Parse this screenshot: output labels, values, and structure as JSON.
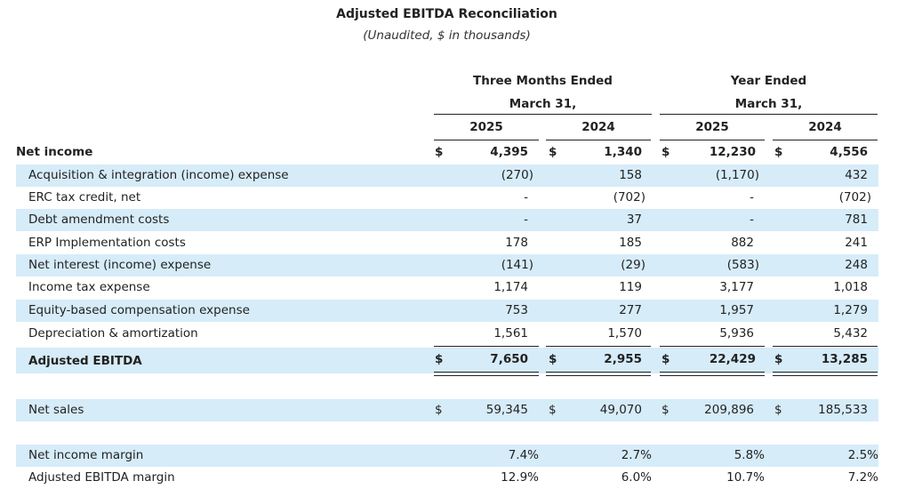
{
  "title": "Adjusted EBITDA Reconciliation",
  "subtitle": "(Unaudited, $ in thousands)",
  "periods": {
    "three_months_line1": "Three Months Ended",
    "three_months_line2": "March 31,",
    "year_line1": "Year Ended",
    "year_line2": "March 31,"
  },
  "years": [
    "2025",
    "2024",
    "2025",
    "2024"
  ],
  "rows": [
    {
      "label": "Net income",
      "values": [
        "4,395",
        "1,340",
        "12,230",
        "4,556"
      ],
      "dollar": "$"
    },
    {
      "label": "Acquisition & integration (income) expense",
      "values": [
        "(270)",
        "158",
        "(1,170)",
        "432"
      ]
    },
    {
      "label": "ERC tax credit, net",
      "values": [
        "-",
        "(702)",
        "-",
        "(702)"
      ]
    },
    {
      "label": "Debt amendment costs",
      "values": [
        "-",
        "37",
        "-",
        "781"
      ]
    },
    {
      "label": "ERP Implementation costs",
      "values": [
        "178",
        "185",
        "882",
        "241"
      ]
    },
    {
      "label": "Net interest (income) expense",
      "values": [
        "(141)",
        "(29)",
        "(583)",
        "248"
      ]
    },
    {
      "label": "Income tax expense",
      "values": [
        "1,174",
        "119",
        "3,177",
        "1,018"
      ]
    },
    {
      "label": "Equity-based compensation expense",
      "values": [
        "753",
        "277",
        "1,957",
        "1,279"
      ]
    },
    {
      "label": "Depreciation & amortization",
      "values": [
        "1,561",
        "1,570",
        "5,936",
        "5,432"
      ]
    },
    {
      "label": "Adjusted EBITDA",
      "values": [
        "7,650",
        "2,955",
        "22,429",
        "13,285"
      ],
      "dollar": "$"
    }
  ],
  "net_sales": {
    "label": "Net sales",
    "values": [
      "59,345",
      "49,070",
      "209,896",
      "185,533"
    ],
    "dollar": "$"
  },
  "margins": [
    {
      "label": "Net income margin",
      "values": [
        "7.4%",
        "2.7%",
        "5.8%",
        "2.5%"
      ]
    },
    {
      "label": "Adjusted EBITDA margin",
      "values": [
        "12.9%",
        "6.0%",
        "10.7%",
        "7.2%"
      ]
    }
  ]
}
